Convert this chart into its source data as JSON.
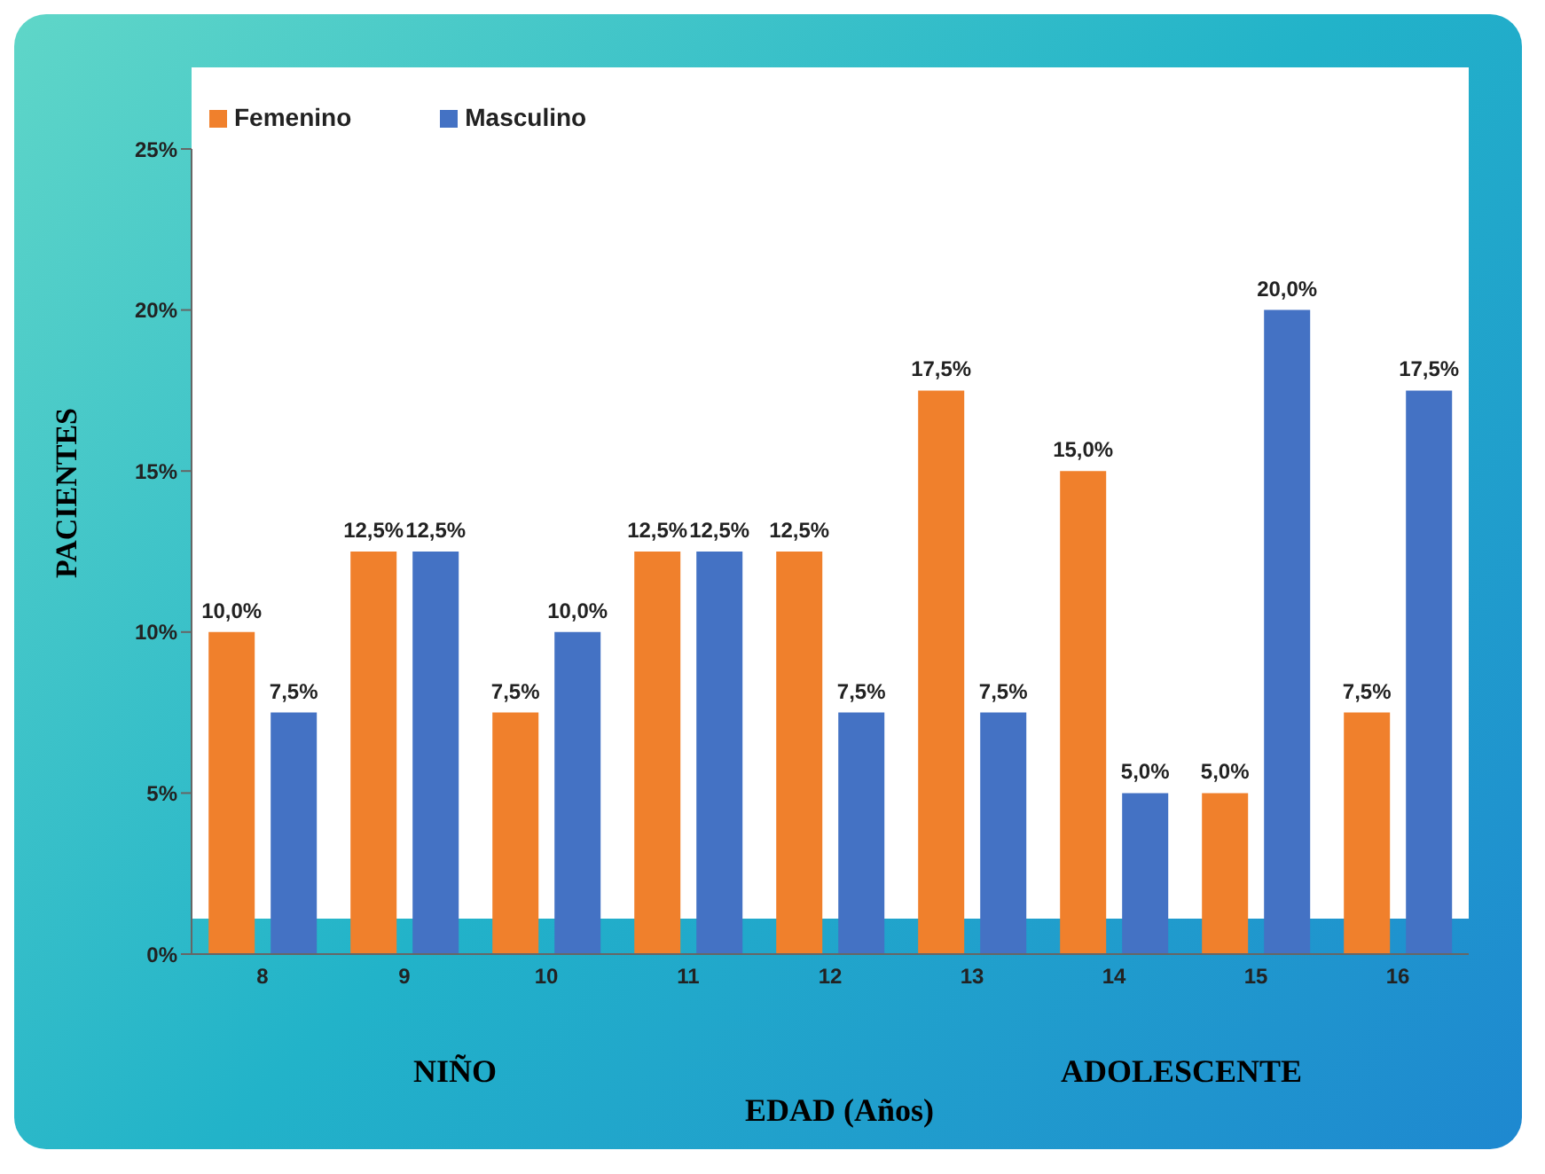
{
  "chart_data": {
    "type": "bar",
    "ylabel": "PACIENTES",
    "xlabel": "EDAD (Años)",
    "categories": [
      "8",
      "9",
      "10",
      "11",
      "12",
      "13",
      "14",
      "15",
      "16"
    ],
    "series": [
      {
        "name": "Femenino",
        "color": "#f0802c",
        "values": [
          10,
          12.5,
          7.5,
          12.5,
          12.5,
          17.5,
          15,
          5,
          7.5
        ],
        "value_labels": [
          "10,0%",
          "12,5%",
          "7,5%",
          "12,5%",
          "12,5%",
          "17,5%",
          "15,0%",
          "5,0%",
          "7,5%"
        ]
      },
      {
        "name": "Masculino",
        "color": "#4472c4",
        "values": [
          7.5,
          12.5,
          10,
          12.5,
          7.5,
          7.5,
          5,
          20,
          17.5
        ],
        "value_labels": [
          "7,5%",
          "12,5%",
          "10,0%",
          "12,5%",
          "7,5%",
          "7,5%",
          "5,0%",
          "20,0%",
          "17,5%"
        ]
      }
    ],
    "ylim": [
      0,
      25
    ],
    "yticks": [
      {
        "value": 0,
        "label": "0%"
      },
      {
        "value": 5,
        "label": "5%"
      },
      {
        "value": 10,
        "label": "10%"
      },
      {
        "value": 15,
        "label": "15%"
      },
      {
        "value": 20,
        "label": "20%"
      },
      {
        "value": 25,
        "label": "25%"
      }
    ],
    "grid": false,
    "legend": "top left",
    "annotations": [
      "NIÑO",
      "ADOLESCENTE"
    ]
  }
}
